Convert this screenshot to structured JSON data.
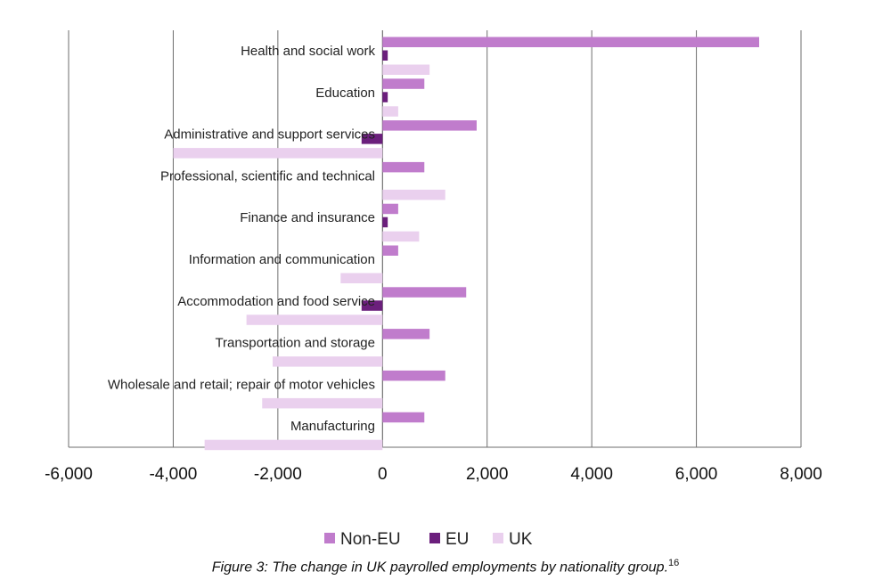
{
  "caption": {
    "text": "Figure 3: The change in UK payrolled employments by nationality group.",
    "footnote": "16"
  },
  "chart_data": {
    "type": "bar",
    "orientation": "horizontal",
    "title": "",
    "xlabel": "",
    "ylabel": "",
    "xlim": [
      -6000,
      8000
    ],
    "x_ticks": [
      "-6,000",
      "-4,000",
      "-2,000",
      "0",
      "2,000",
      "4,000",
      "6,000",
      "8,000"
    ],
    "x_tick_values": [
      -6000,
      -4000,
      -2000,
      0,
      2000,
      4000,
      6000,
      8000
    ],
    "grid": "vertical",
    "legend_position": "bottom",
    "categories": [
      "Health and social work",
      "Education",
      "Administrative and support services",
      "Professional, scientific and technical",
      "Finance and insurance",
      "Information and communication",
      "Accommodation and food service",
      "Transportation and storage",
      "Wholesale and retail; repair of motor vehicles",
      "Manufacturing"
    ],
    "series": [
      {
        "name": "Non-EU",
        "color": "#c07ccc",
        "values": [
          7200,
          800,
          1800,
          800,
          300,
          300,
          1600,
          900,
          1200,
          800
        ]
      },
      {
        "name": "EU",
        "color": "#6b1f7c",
        "values": [
          100,
          100,
          -400,
          0,
          100,
          0,
          -400,
          0,
          0,
          0
        ]
      },
      {
        "name": "UK",
        "color": "#ead0ee",
        "values": [
          900,
          300,
          -4000,
          1200,
          700,
          -800,
          -2600,
          -2100,
          -2300,
          -3400
        ]
      }
    ]
  }
}
